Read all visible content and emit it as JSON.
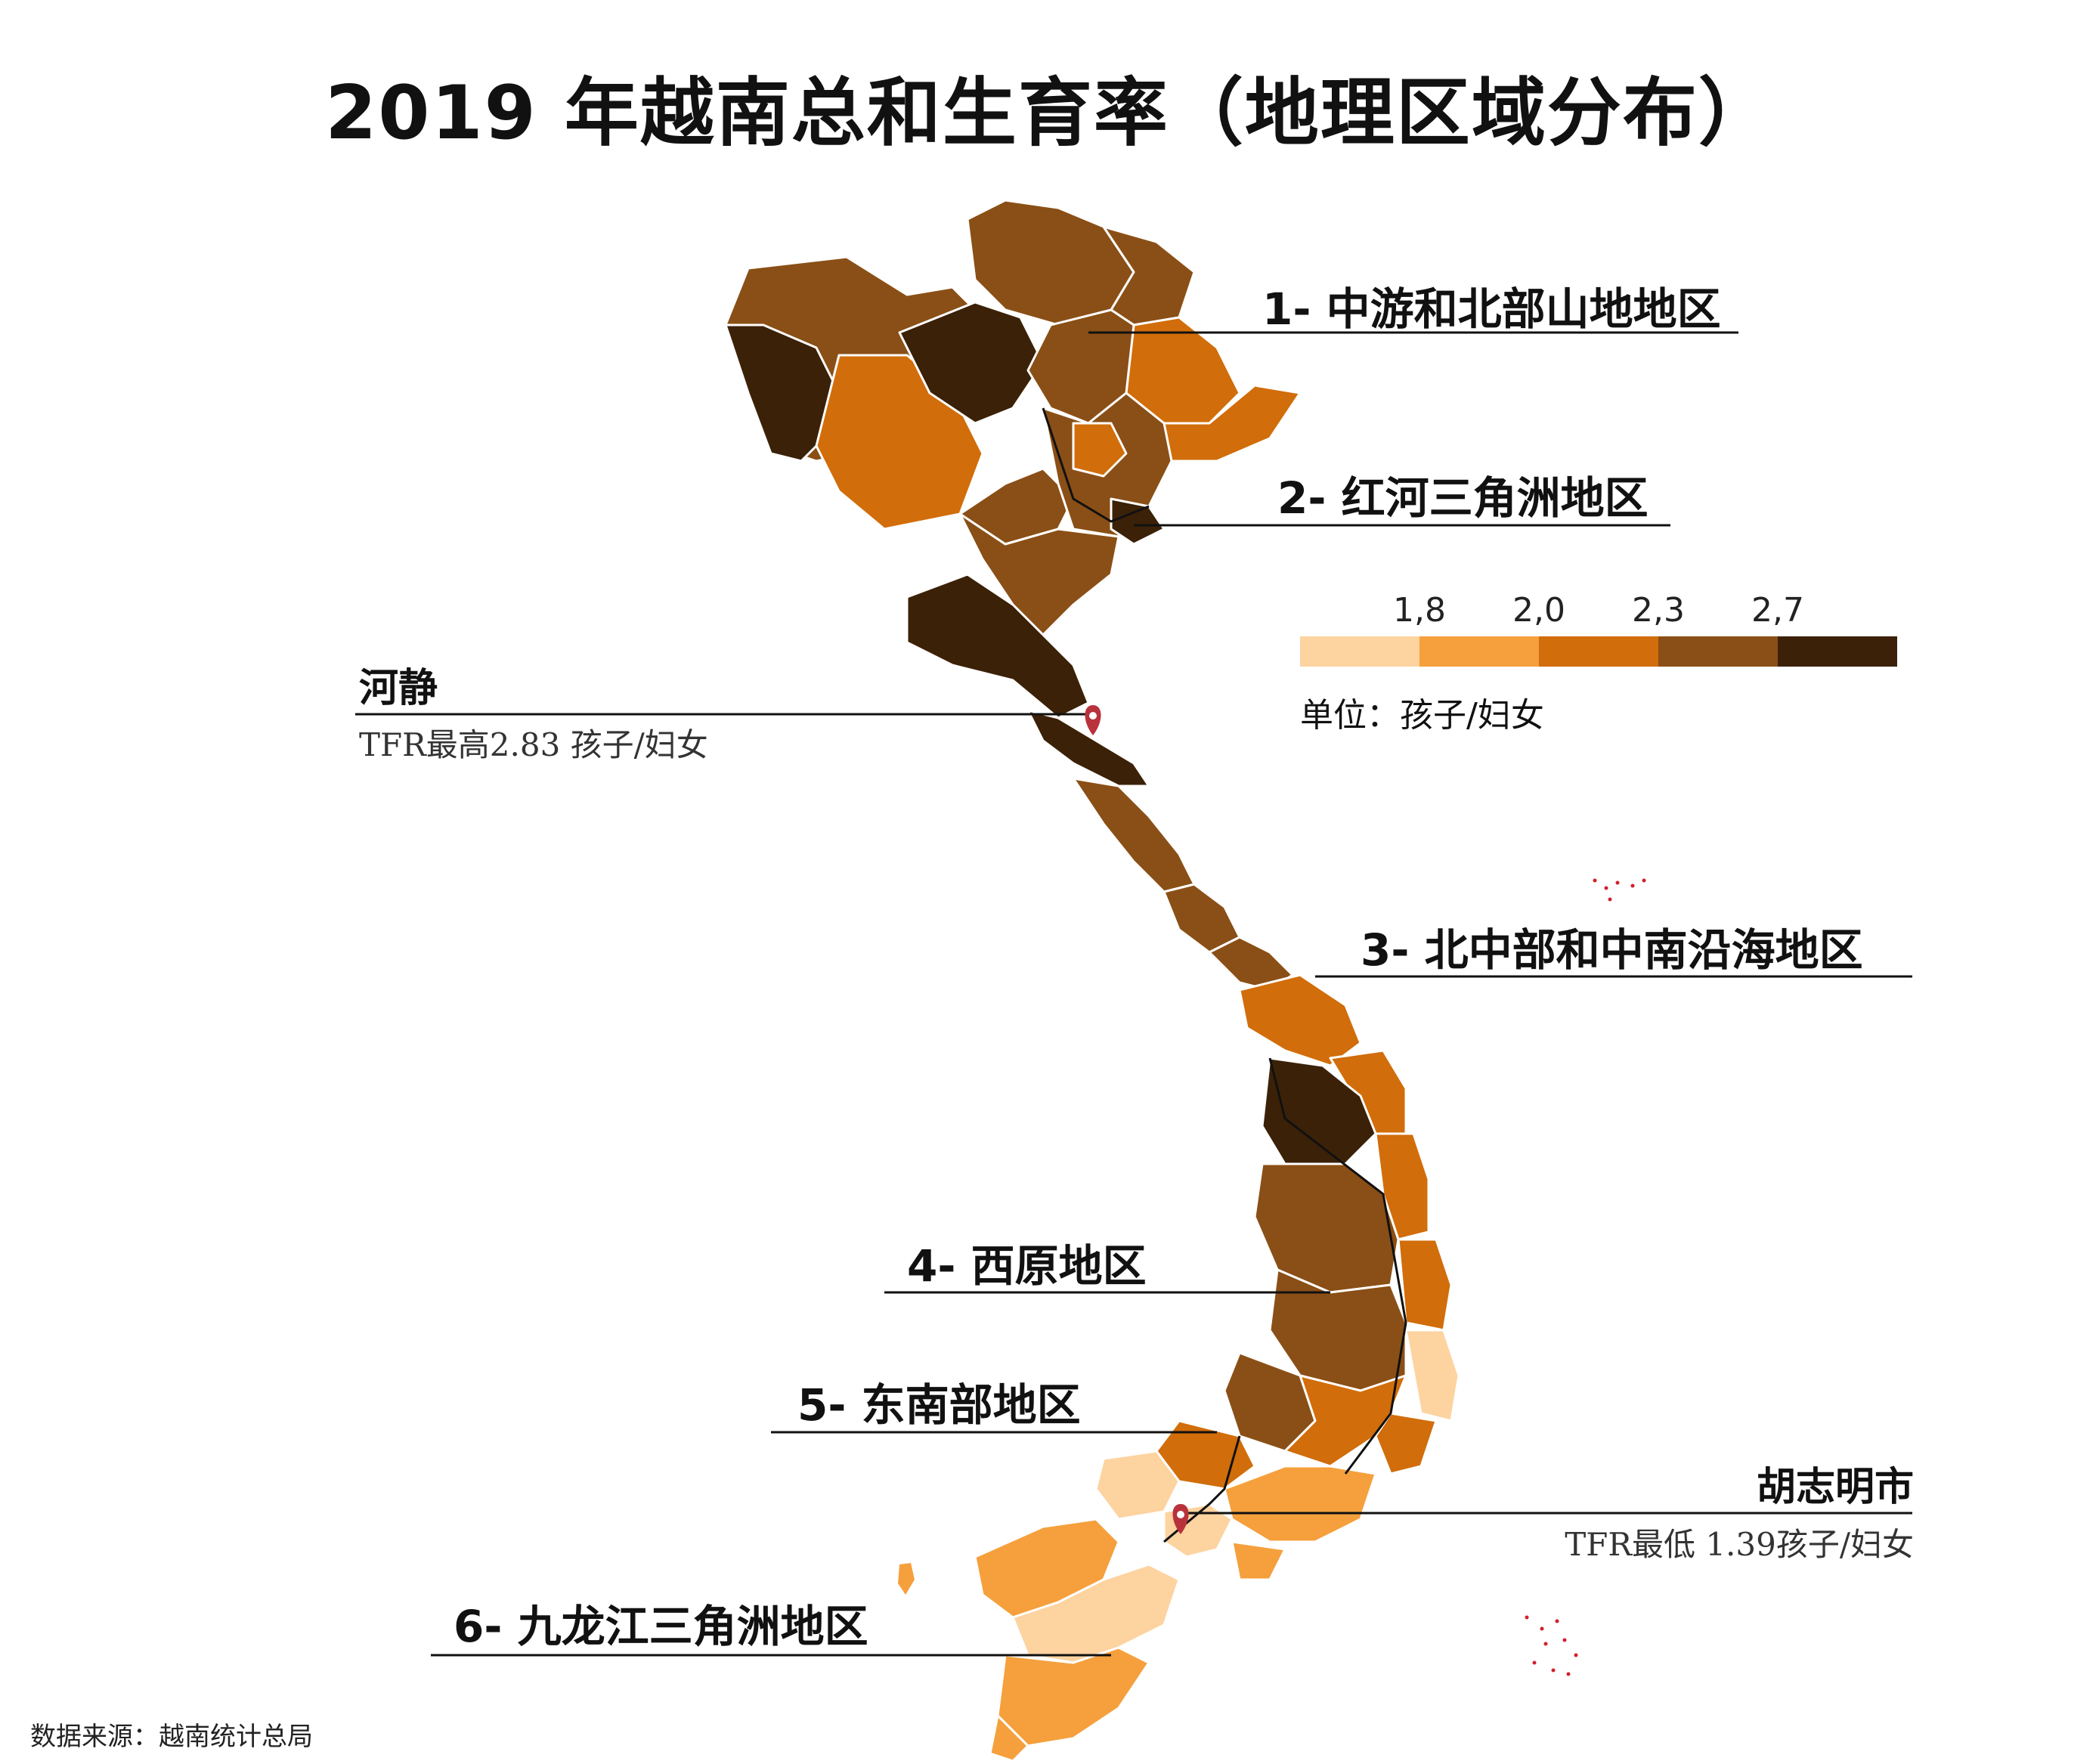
{
  "title": "2019 年越南总和生育率（地理区域分布）",
  "regions": [
    {
      "label": "1- 中游和北部山地地区"
    },
    {
      "label": "2- 红河三角洲地区"
    },
    {
      "label": "3- 北中部和中南沿海地区"
    },
    {
      "label": "4- 西原地区"
    },
    {
      "label": "5- 东南部地区"
    },
    {
      "label": "6- 九龙江三角洲地区"
    }
  ],
  "highest": {
    "name": "河静",
    "note": "TFR最高2.83 孩子/妇女"
  },
  "lowest": {
    "name": "胡志明市",
    "note": "TFR最低 1.39孩子/妇女"
  },
  "legend": {
    "breaks": [
      "1,8",
      "2,0",
      "2,3",
      "2,7"
    ],
    "colors": [
      "#fdd3a0",
      "#f5a03c",
      "#d16d0a",
      "#8a4f16",
      "#3b2107"
    ],
    "unit": "单位：孩子/妇女"
  },
  "source": "数据来源：越南统计总局",
  "marker_color": "#b8323c"
}
